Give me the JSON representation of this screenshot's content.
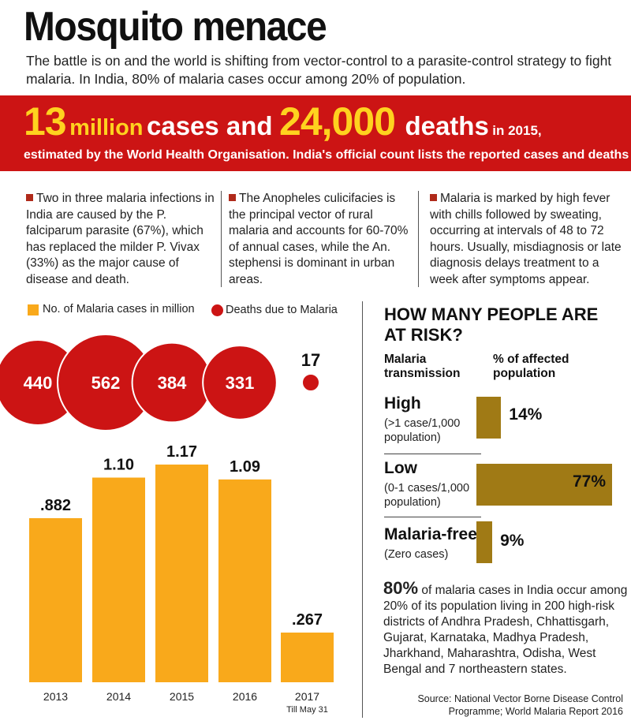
{
  "header": {
    "title": "Mosquito menace",
    "subtitle": "The battle is on and the world is shifting from vector-control to a parasite-control strategy to fight malaria. In India, 80% of malaria cases occur among 20% of population."
  },
  "banner": {
    "cases_num": "13",
    "cases_unit": "million",
    "cases_text": "cases and",
    "deaths_num": "24,000",
    "deaths_text": "deaths",
    "year_text": "in 2015,",
    "line2": "estimated by the World Health Organisation. India's official count lists the reported cases and deaths"
  },
  "facts": [
    "Two in three malaria infections in India are caused by the P. falciparum parasite (67%), which has replaced the milder P. Vivax (33%) as the major cause of disease and death.",
    "The Anopheles culicifacies is the principal vector of rural malaria and accounts for 60-70% of annual cases, while the An. stephensi is dominant in urban areas.",
    "Malaria is marked by high fever with chills followed by sweating, occurring at intervals of 48 to 72 hours. Usually, misdiagnosis or late diagnosis delays treatment to a week after symptoms appear."
  ],
  "chart_data": [
    {
      "type": "bar",
      "categories": [
        "2013",
        "2014",
        "2015",
        "2016",
        "2017"
      ],
      "category_notes": [
        "",
        "",
        "",
        "",
        "Till May 31"
      ],
      "series": [
        {
          "name": "No. of Malaria cases in million",
          "values": [
            0.882,
            1.1,
            1.17,
            1.09,
            0.267
          ],
          "labels": [
            ".882",
            "1.10",
            "1.17",
            "1.09",
            ".267"
          ],
          "color": "#f9a91b"
        },
        {
          "name": "Deaths due to Malaria",
          "values": [
            440,
            562,
            384,
            331,
            17
          ],
          "labels": [
            "440",
            "562",
            "384",
            "331",
            "17"
          ],
          "color": "#cc1414"
        }
      ],
      "ylim": [
        0,
        1.17
      ]
    },
    {
      "type": "bar",
      "title": "HOW MANY PEOPLE ARE AT RISK?",
      "col_headers": [
        "Malaria transmission",
        "% of affected population"
      ],
      "categories": [
        "High",
        "Low",
        "Malaria-free"
      ],
      "category_notes": [
        "(>1 case/1,000 population)",
        "(0-1 cases/1,000 population)",
        "(Zero cases)"
      ],
      "values": [
        14,
        77,
        9
      ],
      "labels": [
        "14%",
        "77%",
        "9%"
      ],
      "color": "#a07a15",
      "xlim": [
        0,
        77
      ]
    }
  ],
  "note": {
    "bold": "80%",
    "text": " of malaria cases in India occur among 20% of its population living in 200 high-risk districts of Andhra Pradesh, Chhattisgarh, Gujarat, Karnataka, Madhya Pradesh, Jharkhand, Maharashtra, Odisha, West Bengal and 7 northeastern states."
  },
  "source": {
    "line1": "Source: National Vector Borne Disease Control",
    "line2": "Programme; World Malaria Report 2016"
  }
}
